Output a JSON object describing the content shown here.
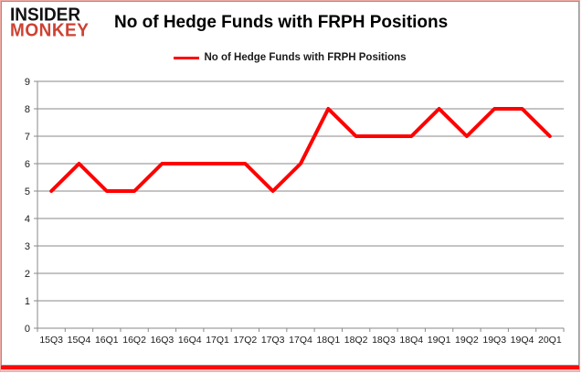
{
  "header": {
    "logo_line1": "INSIDER",
    "logo_line2": "MONKEY",
    "title": "No of Hedge Funds with FRPH Positions"
  },
  "legend": {
    "label": "No of Hedge Funds with FRPH Positions"
  },
  "colors": {
    "line": "#ff0000",
    "logo_accent": "#cd4233",
    "grid": "#8a8a8a",
    "axis_text": "#1a1a1a",
    "frame_border": "#949494",
    "frame_bottom": "#ff0a0a"
  },
  "chart_data": {
    "type": "line",
    "title": "No of Hedge Funds with FRPH Positions",
    "categories": [
      "15Q3",
      "15Q4",
      "16Q1",
      "16Q2",
      "16Q3",
      "16Q4",
      "17Q1",
      "17Q2",
      "17Q3",
      "17Q4",
      "18Q1",
      "18Q2",
      "18Q3",
      "18Q4",
      "19Q1",
      "19Q2",
      "19Q3",
      "19Q4",
      "20Q1"
    ],
    "series": [
      {
        "name": "No of Hedge Funds with FRPH Positions",
        "values": [
          5,
          6,
          5,
          5,
          6,
          6,
          6,
          6,
          5,
          6,
          8,
          7,
          7,
          7,
          8,
          7,
          8,
          8,
          7
        ]
      }
    ],
    "xlabel": "",
    "ylabel": "",
    "ylim": [
      0,
      9
    ],
    "ytick_step": 1,
    "yticks": [
      0,
      1,
      2,
      3,
      4,
      5,
      6,
      7,
      8,
      9
    ],
    "grid": "horizontal",
    "legend_position": "top-center",
    "line_color": "#ff0000"
  }
}
